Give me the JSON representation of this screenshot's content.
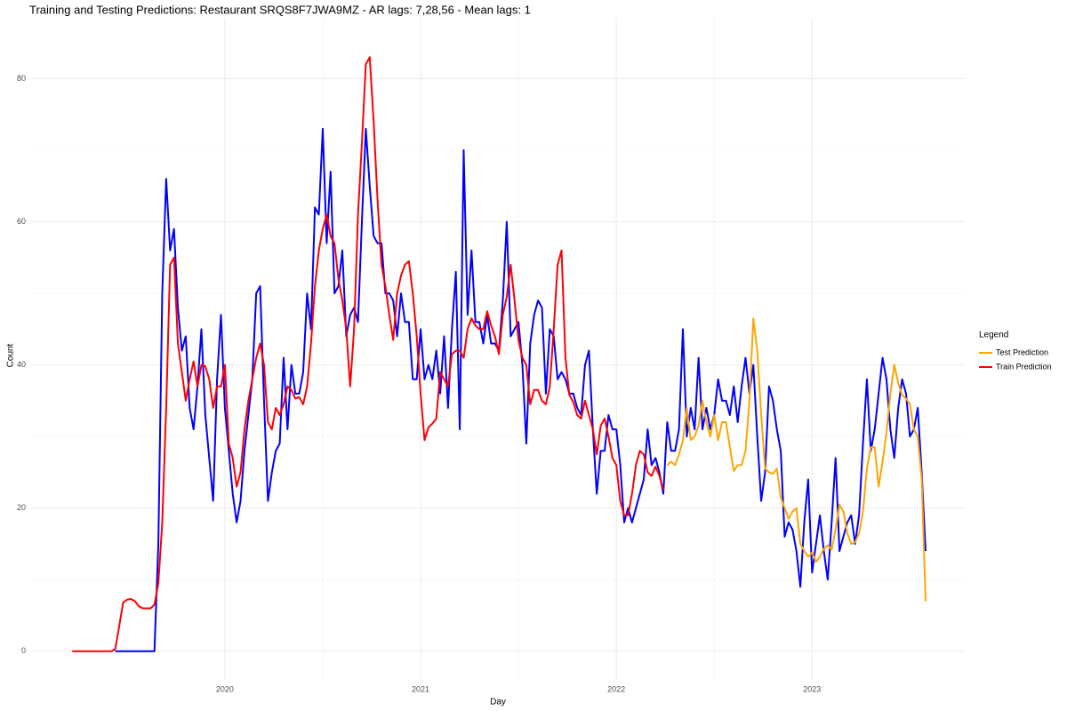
{
  "chart_data": {
    "type": "line",
    "title": "Training and Testing Predictions: Restaurant SRQS8F7JWA9MZ - AR lags: 7,28,56 - Mean lags: 1",
    "x_label": "Day",
    "y_label": "Count",
    "legend_title": "Legend",
    "legend": "right",
    "grid": true,
    "xlim": [
      2019.01,
      2023.78
    ],
    "xticks": [
      2020,
      2021,
      2022,
      2023
    ],
    "ylim": [
      -4,
      88.5
    ],
    "yticks": [
      0,
      20,
      40,
      60,
      80
    ],
    "x": [
      2019.22,
      2019.24,
      2019.26,
      2019.28,
      2019.3,
      2019.32,
      2019.34,
      2019.36,
      2019.38,
      2019.4,
      2019.42,
      2019.44,
      2019.46,
      2019.48,
      2019.5,
      2019.52,
      2019.54,
      2019.56,
      2019.58,
      2019.6,
      2019.62,
      2019.64,
      2019.66,
      2019.68,
      2019.7,
      2019.72,
      2019.74,
      2019.76,
      2019.78,
      2019.8,
      2019.82,
      2019.84,
      2019.86,
      2019.88,
      2019.9,
      2019.92,
      2019.94,
      2019.96,
      2019.98,
      2020,
      2020.02,
      2020.04,
      2020.06,
      2020.08,
      2020.1,
      2020.12,
      2020.14,
      2020.16,
      2020.18,
      2020.2,
      2020.22,
      2020.24,
      2020.26,
      2020.28,
      2020.3,
      2020.32,
      2020.34,
      2020.36,
      2020.38,
      2020.4,
      2020.42,
      2020.44,
      2020.46,
      2020.48,
      2020.5,
      2020.52,
      2020.54,
      2020.56,
      2020.58,
      2020.6,
      2020.62,
      2020.64,
      2020.66,
      2020.68,
      2020.7,
      2020.72,
      2020.74,
      2020.76,
      2020.78,
      2020.8,
      2020.82,
      2020.84,
      2020.86,
      2020.88,
      2020.9,
      2020.92,
      2020.94,
      2020.96,
      2020.98,
      2021,
      2021.02,
      2021.04,
      2021.06,
      2021.08,
      2021.1,
      2021.12,
      2021.14,
      2021.16,
      2021.18,
      2021.2,
      2021.22,
      2021.24,
      2021.26,
      2021.28,
      2021.3,
      2021.32,
      2021.34,
      2021.36,
      2021.38,
      2021.4,
      2021.42,
      2021.44,
      2021.46,
      2021.48,
      2021.5,
      2021.52,
      2021.54,
      2021.56,
      2021.58,
      2021.6,
      2021.62,
      2021.64,
      2021.66,
      2021.68,
      2021.7,
      2021.72,
      2021.74,
      2021.76,
      2021.78,
      2021.8,
      2021.82,
      2021.84,
      2021.86,
      2021.88,
      2021.9,
      2021.92,
      2021.94,
      2021.96,
      2021.98,
      2022,
      2022.02,
      2022.04,
      2022.06,
      2022.08,
      2022.1,
      2022.12,
      2022.14,
      2022.16,
      2022.18,
      2022.2,
      2022.22,
      2022.24,
      2022.26,
      2022.28,
      2022.3,
      2022.32,
      2022.34,
      2022.36,
      2022.38,
      2022.4,
      2022.42,
      2022.44,
      2022.46,
      2022.48,
      2022.5,
      2022.52,
      2022.54,
      2022.56,
      2022.58,
      2022.6,
      2022.62,
      2022.64,
      2022.66,
      2022.68,
      2022.7,
      2022.72,
      2022.74,
      2022.76,
      2022.78,
      2022.8,
      2022.82,
      2022.84,
      2022.86,
      2022.88,
      2022.9,
      2022.92,
      2022.94,
      2022.96,
      2022.98,
      2023,
      2023.02,
      2023.04,
      2023.06,
      2023.08,
      2023.1,
      2023.12,
      2023.14,
      2023.16,
      2023.18,
      2023.2,
      2023.22,
      2023.24,
      2023.26,
      2023.28,
      2023.3,
      2023.32,
      2023.34,
      2023.36,
      2023.38,
      2023.4,
      2023.42,
      2023.44,
      2023.46,
      2023.48,
      2023.5,
      2023.52,
      2023.54,
      2023.56,
      2023.58
    ],
    "series": [
      {
        "color": "#0000ff",
        "values": [
          null,
          null,
          null,
          null,
          null,
          null,
          null,
          null,
          null,
          null,
          null,
          0,
          0,
          0,
          0,
          0,
          0,
          0,
          0,
          0,
          0,
          0,
          15,
          50,
          66,
          56,
          59,
          48,
          42,
          44,
          34,
          31,
          37,
          45,
          33,
          27,
          21,
          38,
          47,
          34,
          28,
          22,
          18,
          21,
          28,
          33,
          38,
          50,
          51,
          35,
          21,
          25,
          28,
          29,
          41,
          31,
          40,
          36,
          36,
          39,
          50,
          45,
          62,
          61,
          73,
          57,
          67,
          50,
          51,
          56,
          44,
          47,
          48,
          46,
          60,
          73,
          65,
          58,
          57,
          57,
          50,
          50,
          49,
          44,
          50,
          46,
          46,
          38,
          38,
          45,
          38,
          40,
          38,
          42,
          36,
          44,
          34,
          45,
          53,
          31,
          70,
          47,
          56,
          46,
          46,
          43,
          47,
          43,
          43,
          42,
          49,
          60,
          44,
          45,
          46,
          40,
          29,
          43,
          47,
          49,
          48,
          36,
          45,
          44,
          38,
          39,
          38,
          36,
          36,
          34,
          33,
          40,
          42,
          31,
          22,
          28,
          28,
          33,
          31,
          31,
          26,
          18,
          20,
          18,
          20,
          22,
          24,
          31,
          26,
          27,
          25,
          22,
          32,
          28,
          28,
          31,
          45,
          30,
          34,
          31,
          41,
          31,
          34,
          31,
          33,
          38,
          35,
          35,
          33,
          37,
          32,
          37,
          41,
          36,
          40,
          30,
          21,
          25,
          37,
          35,
          31,
          28,
          16,
          18,
          17,
          14,
          9,
          18,
          24,
          11,
          15,
          19,
          14,
          10,
          18,
          27,
          14,
          16,
          18,
          19,
          15,
          19,
          29,
          38,
          28,
          31,
          36,
          41,
          38,
          31,
          27,
          34,
          38,
          36,
          30,
          31,
          34,
          25,
          14
        ]
      },
      {
        "name": "Test Prediction",
        "color": "#ffa500",
        "values": [
          null,
          null,
          null,
          null,
          null,
          null,
          null,
          null,
          null,
          null,
          null,
          null,
          null,
          null,
          null,
          null,
          null,
          null,
          null,
          null,
          null,
          null,
          null,
          null,
          null,
          null,
          null,
          null,
          null,
          null,
          null,
          null,
          null,
          null,
          null,
          null,
          null,
          null,
          null,
          null,
          null,
          null,
          null,
          null,
          null,
          null,
          null,
          null,
          null,
          null,
          null,
          null,
          null,
          null,
          null,
          null,
          null,
          null,
          null,
          null,
          null,
          null,
          null,
          null,
          null,
          null,
          null,
          null,
          null,
          null,
          null,
          null,
          null,
          null,
          null,
          null,
          null,
          null,
          null,
          null,
          null,
          null,
          null,
          null,
          null,
          null,
          null,
          null,
          null,
          null,
          null,
          null,
          null,
          null,
          null,
          null,
          null,
          null,
          null,
          null,
          null,
          null,
          null,
          null,
          null,
          null,
          null,
          null,
          null,
          null,
          null,
          null,
          null,
          null,
          null,
          null,
          null,
          null,
          null,
          null,
          null,
          null,
          null,
          null,
          null,
          null,
          null,
          null,
          null,
          null,
          null,
          null,
          null,
          null,
          null,
          null,
          null,
          null,
          null,
          null,
          null,
          null,
          null,
          null,
          null,
          null,
          null,
          null,
          null,
          null,
          null,
          null,
          26,
          26.5,
          26,
          27.5,
          29.5,
          34,
          29.5,
          30,
          31.5,
          35,
          32,
          30,
          33,
          29.5,
          32,
          32,
          28.5,
          25.2,
          26,
          26,
          28,
          35,
          46.5,
          42,
          33,
          25.5,
          25,
          24.8,
          25.5,
          21.5,
          20,
          18.5,
          19.5,
          20,
          15,
          14,
          13.2,
          13.8,
          12.5,
          13.2,
          14.3,
          14.8,
          14.2,
          17,
          20.5,
          19.5,
          16.5,
          15,
          15.2,
          16.5,
          19.5,
          25.5,
          28.5,
          28.5,
          23,
          26.5,
          30.5,
          36,
          40,
          37.5,
          35.8,
          35.3,
          34.5,
          31,
          30,
          24,
          7
        ]
      },
      {
        "name": "Train Prediction",
        "color": "#ff0000",
        "values": [
          0,
          0,
          0,
          0,
          0,
          0,
          0,
          0,
          0,
          0,
          0,
          0.3,
          3.5,
          6.8,
          7.2,
          7.3,
          7,
          6.3,
          6,
          6,
          6,
          6.5,
          9.5,
          18,
          34,
          54,
          55,
          43,
          39,
          35,
          38,
          40.5,
          37,
          40,
          39.8,
          38,
          34,
          37,
          37,
          40,
          29,
          27,
          23,
          25,
          31,
          35,
          38,
          41,
          43,
          40,
          32,
          31,
          34,
          33,
          34.5,
          37,
          36.5,
          35.3,
          35.5,
          34.5,
          37,
          43,
          51,
          56,
          59,
          61,
          58,
          57,
          52,
          49,
          45,
          37,
          45,
          61,
          71,
          82,
          83,
          74,
          63,
          54,
          51,
          47,
          43.5,
          50,
          52.5,
          54,
          54.5,
          50,
          44,
          36,
          29.5,
          31.3,
          31.8,
          32.5,
          39,
          38,
          37,
          41.5,
          42,
          42,
          41,
          45,
          46.5,
          45.5,
          45,
          45,
          47.5,
          45.5,
          44,
          41.5,
          47,
          49.5,
          54,
          49,
          43.5,
          41,
          40,
          34.5,
          36.5,
          36.5,
          35,
          34.5,
          37,
          45,
          54,
          56,
          41,
          35.8,
          34.8,
          33,
          32.5,
          35,
          33,
          31,
          27.5,
          31.5,
          32.5,
          30,
          27,
          26,
          21,
          19,
          19,
          22,
          26,
          28,
          27.5,
          25,
          24.5,
          25.8,
          24.5,
          22.5,
          null,
          null,
          null,
          null,
          null,
          null,
          null,
          null,
          null,
          null,
          null,
          null,
          null,
          null,
          null,
          null,
          null,
          null,
          null,
          null,
          null,
          null,
          null,
          null,
          null,
          null,
          null,
          null,
          null,
          null,
          null,
          null,
          null,
          null,
          null,
          null,
          null,
          null,
          null,
          null,
          null,
          null,
          null,
          null,
          null,
          null,
          null,
          null,
          null,
          null,
          null,
          null,
          null,
          null,
          null,
          null,
          null,
          null,
          null,
          null,
          null,
          null,
          null,
          null,
          null,
          null,
          null
        ]
      }
    ]
  }
}
